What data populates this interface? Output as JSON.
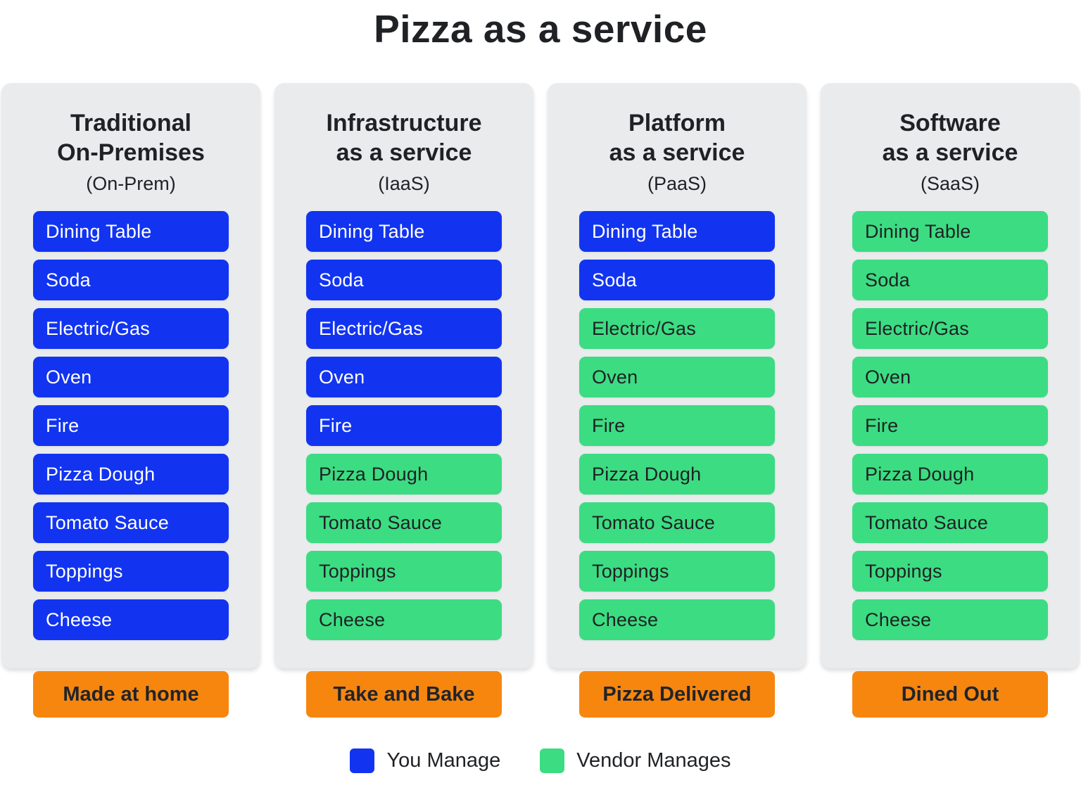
{
  "title": "Pizza as a service",
  "colors": {
    "you_manage_blue": "#1234f0",
    "vendor_manages_green": "#3cdc82",
    "footer_orange": "#f7860f",
    "card_background": "#e9ebed",
    "dark_text": "#1f2124",
    "light_text": "#ffffff"
  },
  "columns": [
    {
      "key": "on-prem",
      "heading_line1": "Traditional",
      "heading_line2": "On-Premises",
      "abbreviation": "(On-Prem)",
      "footer": "Made at home",
      "items": [
        {
          "label": "Dining Table",
          "managed_by": "you"
        },
        {
          "label": "Soda",
          "managed_by": "you"
        },
        {
          "label": "Electric/Gas",
          "managed_by": "you"
        },
        {
          "label": "Oven",
          "managed_by": "you"
        },
        {
          "label": "Fire",
          "managed_by": "you"
        },
        {
          "label": "Pizza Dough",
          "managed_by": "you"
        },
        {
          "label": "Tomato Sauce",
          "managed_by": "you"
        },
        {
          "label": "Toppings",
          "managed_by": "you"
        },
        {
          "label": "Cheese",
          "managed_by": "you"
        }
      ]
    },
    {
      "key": "iaas",
      "heading_line1": "Infrastructure",
      "heading_line2": "as a service",
      "abbreviation": "(IaaS)",
      "footer": "Take and Bake",
      "items": [
        {
          "label": "Dining Table",
          "managed_by": "you"
        },
        {
          "label": "Soda",
          "managed_by": "you"
        },
        {
          "label": "Electric/Gas",
          "managed_by": "you"
        },
        {
          "label": "Oven",
          "managed_by": "you"
        },
        {
          "label": "Fire",
          "managed_by": "you"
        },
        {
          "label": "Pizza Dough",
          "managed_by": "vendor"
        },
        {
          "label": "Tomato Sauce",
          "managed_by": "vendor"
        },
        {
          "label": "Toppings",
          "managed_by": "vendor"
        },
        {
          "label": "Cheese",
          "managed_by": "vendor"
        }
      ]
    },
    {
      "key": "paas",
      "heading_line1": "Platform",
      "heading_line2": "as a service",
      "abbreviation": "(PaaS)",
      "footer": "Pizza Delivered",
      "items": [
        {
          "label": "Dining Table",
          "managed_by": "you"
        },
        {
          "label": "Soda",
          "managed_by": "you"
        },
        {
          "label": "Electric/Gas",
          "managed_by": "vendor"
        },
        {
          "label": "Oven",
          "managed_by": "vendor"
        },
        {
          "label": "Fire",
          "managed_by": "vendor"
        },
        {
          "label": "Pizza Dough",
          "managed_by": "vendor"
        },
        {
          "label": "Tomato Sauce",
          "managed_by": "vendor"
        },
        {
          "label": "Toppings",
          "managed_by": "vendor"
        },
        {
          "label": "Cheese",
          "managed_by": "vendor"
        }
      ]
    },
    {
      "key": "saas",
      "heading_line1": "Software",
      "heading_line2": "as a service",
      "abbreviation": "(SaaS)",
      "footer": "Dined Out",
      "items": [
        {
          "label": "Dining Table",
          "managed_by": "vendor"
        },
        {
          "label": "Soda",
          "managed_by": "vendor"
        },
        {
          "label": "Electric/Gas",
          "managed_by": "vendor"
        },
        {
          "label": "Oven",
          "managed_by": "vendor"
        },
        {
          "label": "Fire",
          "managed_by": "vendor"
        },
        {
          "label": "Pizza Dough",
          "managed_by": "vendor"
        },
        {
          "label": "Tomato Sauce",
          "managed_by": "vendor"
        },
        {
          "label": "Toppings",
          "managed_by": "vendor"
        },
        {
          "label": "Cheese",
          "managed_by": "vendor"
        }
      ]
    }
  ],
  "legend": [
    {
      "key": "you",
      "label": "You Manage"
    },
    {
      "key": "vendor",
      "label": "Vendor Manages"
    }
  ]
}
